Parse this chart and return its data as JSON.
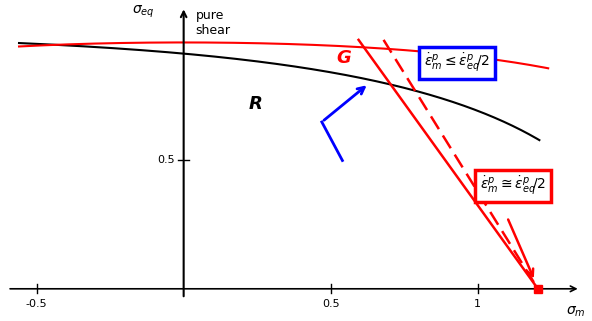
{
  "xlim": [
    -0.62,
    1.38
  ],
  "ylim": [
    -0.08,
    1.12
  ],
  "bg_color": "white",
  "rousselier_color": "black",
  "gurson_color": "red",
  "label_R": "R",
  "label_G": "G",
  "box1_color": "blue",
  "box2_color": "red",
  "box1_text": "$\\dot{\\varepsilon}_m^p \\leq \\dot{\\varepsilon}_{eq}^p\\!/2$",
  "box2_text": "$\\dot{\\varepsilon}_m^p \\cong \\dot{\\varepsilon}_{eq}^p\\!/2$",
  "pure_shear_label": "pure\nshear",
  "sigma_eq_label": "$\\sigma_{eq}$",
  "sigma_m_label": "$\\sigma_m$"
}
